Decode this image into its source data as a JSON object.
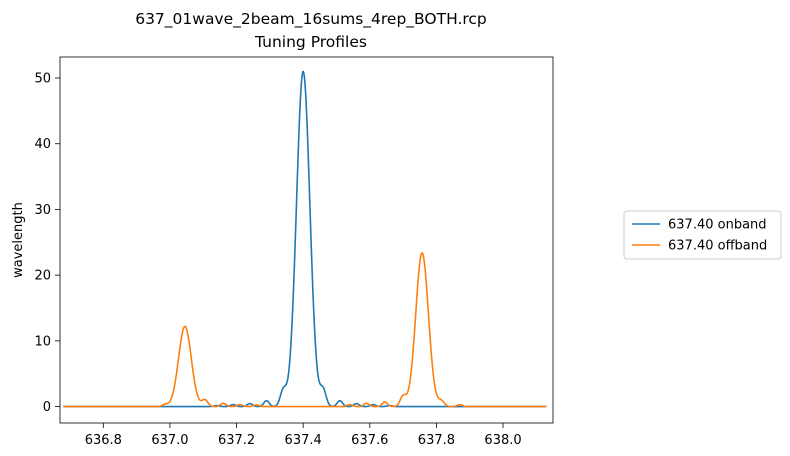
{
  "chart_data": {
    "type": "line",
    "title": "637_01wave_2beam_16sums_4rep_BOTH.rcp",
    "subtitle": "Tuning Profiles",
    "xlabel": "",
    "ylabel": "wavelength",
    "xlim": [
      636.67,
      638.15
    ],
    "ylim": [
      -2.5,
      53.2
    ],
    "xticks": [
      636.8,
      637.0,
      637.2,
      637.4,
      637.6,
      637.8,
      638.0
    ],
    "xtick_labels": [
      "636.8",
      "637.0",
      "637.2",
      "637.4",
      "637.6",
      "637.8",
      "638.0"
    ],
    "yticks": [
      0,
      10,
      20,
      30,
      40,
      50
    ],
    "ytick_labels": [
      "0",
      "10",
      "20",
      "30",
      "40",
      "50"
    ],
    "grid": false,
    "legend_position": "outside right, vertically centered",
    "series": [
      {
        "name": "637.40 onband",
        "color": "#1f77b4",
        "x_range": [
          636.68,
          638.13
        ],
        "peaks": [
          {
            "x": 637.4,
            "y": 51.0,
            "width": 0.02
          },
          {
            "x": 637.34,
            "y": 2.3,
            "width": 0.009
          },
          {
            "x": 637.46,
            "y": 2.4,
            "width": 0.009
          },
          {
            "x": 637.29,
            "y": 0.9,
            "width": 0.008
          },
          {
            "x": 637.51,
            "y": 0.9,
            "width": 0.008
          },
          {
            "x": 637.24,
            "y": 0.45,
            "width": 0.008
          },
          {
            "x": 637.56,
            "y": 0.45,
            "width": 0.008
          },
          {
            "x": 637.19,
            "y": 0.3,
            "width": 0.008
          },
          {
            "x": 637.61,
            "y": 0.3,
            "width": 0.008
          },
          {
            "x": 637.14,
            "y": 0.15,
            "width": 0.008
          },
          {
            "x": 637.66,
            "y": 0.15,
            "width": 0.008
          }
        ]
      },
      {
        "name": "637.40 offband",
        "color": "#ff7f0e",
        "x_range": [
          636.68,
          638.13
        ],
        "peaks": [
          {
            "x": 637.045,
            "y": 12.2,
            "width": 0.019
          },
          {
            "x": 637.757,
            "y": 23.4,
            "width": 0.019
          },
          {
            "x": 636.985,
            "y": 0.3,
            "width": 0.008
          },
          {
            "x": 637.105,
            "y": 1.0,
            "width": 0.009
          },
          {
            "x": 637.16,
            "y": 0.5,
            "width": 0.008
          },
          {
            "x": 637.21,
            "y": 0.3,
            "width": 0.008
          },
          {
            "x": 637.26,
            "y": 0.25,
            "width": 0.008
          },
          {
            "x": 637.54,
            "y": 0.3,
            "width": 0.008
          },
          {
            "x": 637.59,
            "y": 0.5,
            "width": 0.008
          },
          {
            "x": 637.645,
            "y": 0.7,
            "width": 0.008
          },
          {
            "x": 637.7,
            "y": 1.5,
            "width": 0.009
          },
          {
            "x": 637.815,
            "y": 0.8,
            "width": 0.009
          },
          {
            "x": 637.87,
            "y": 0.3,
            "width": 0.008
          }
        ]
      }
    ]
  }
}
